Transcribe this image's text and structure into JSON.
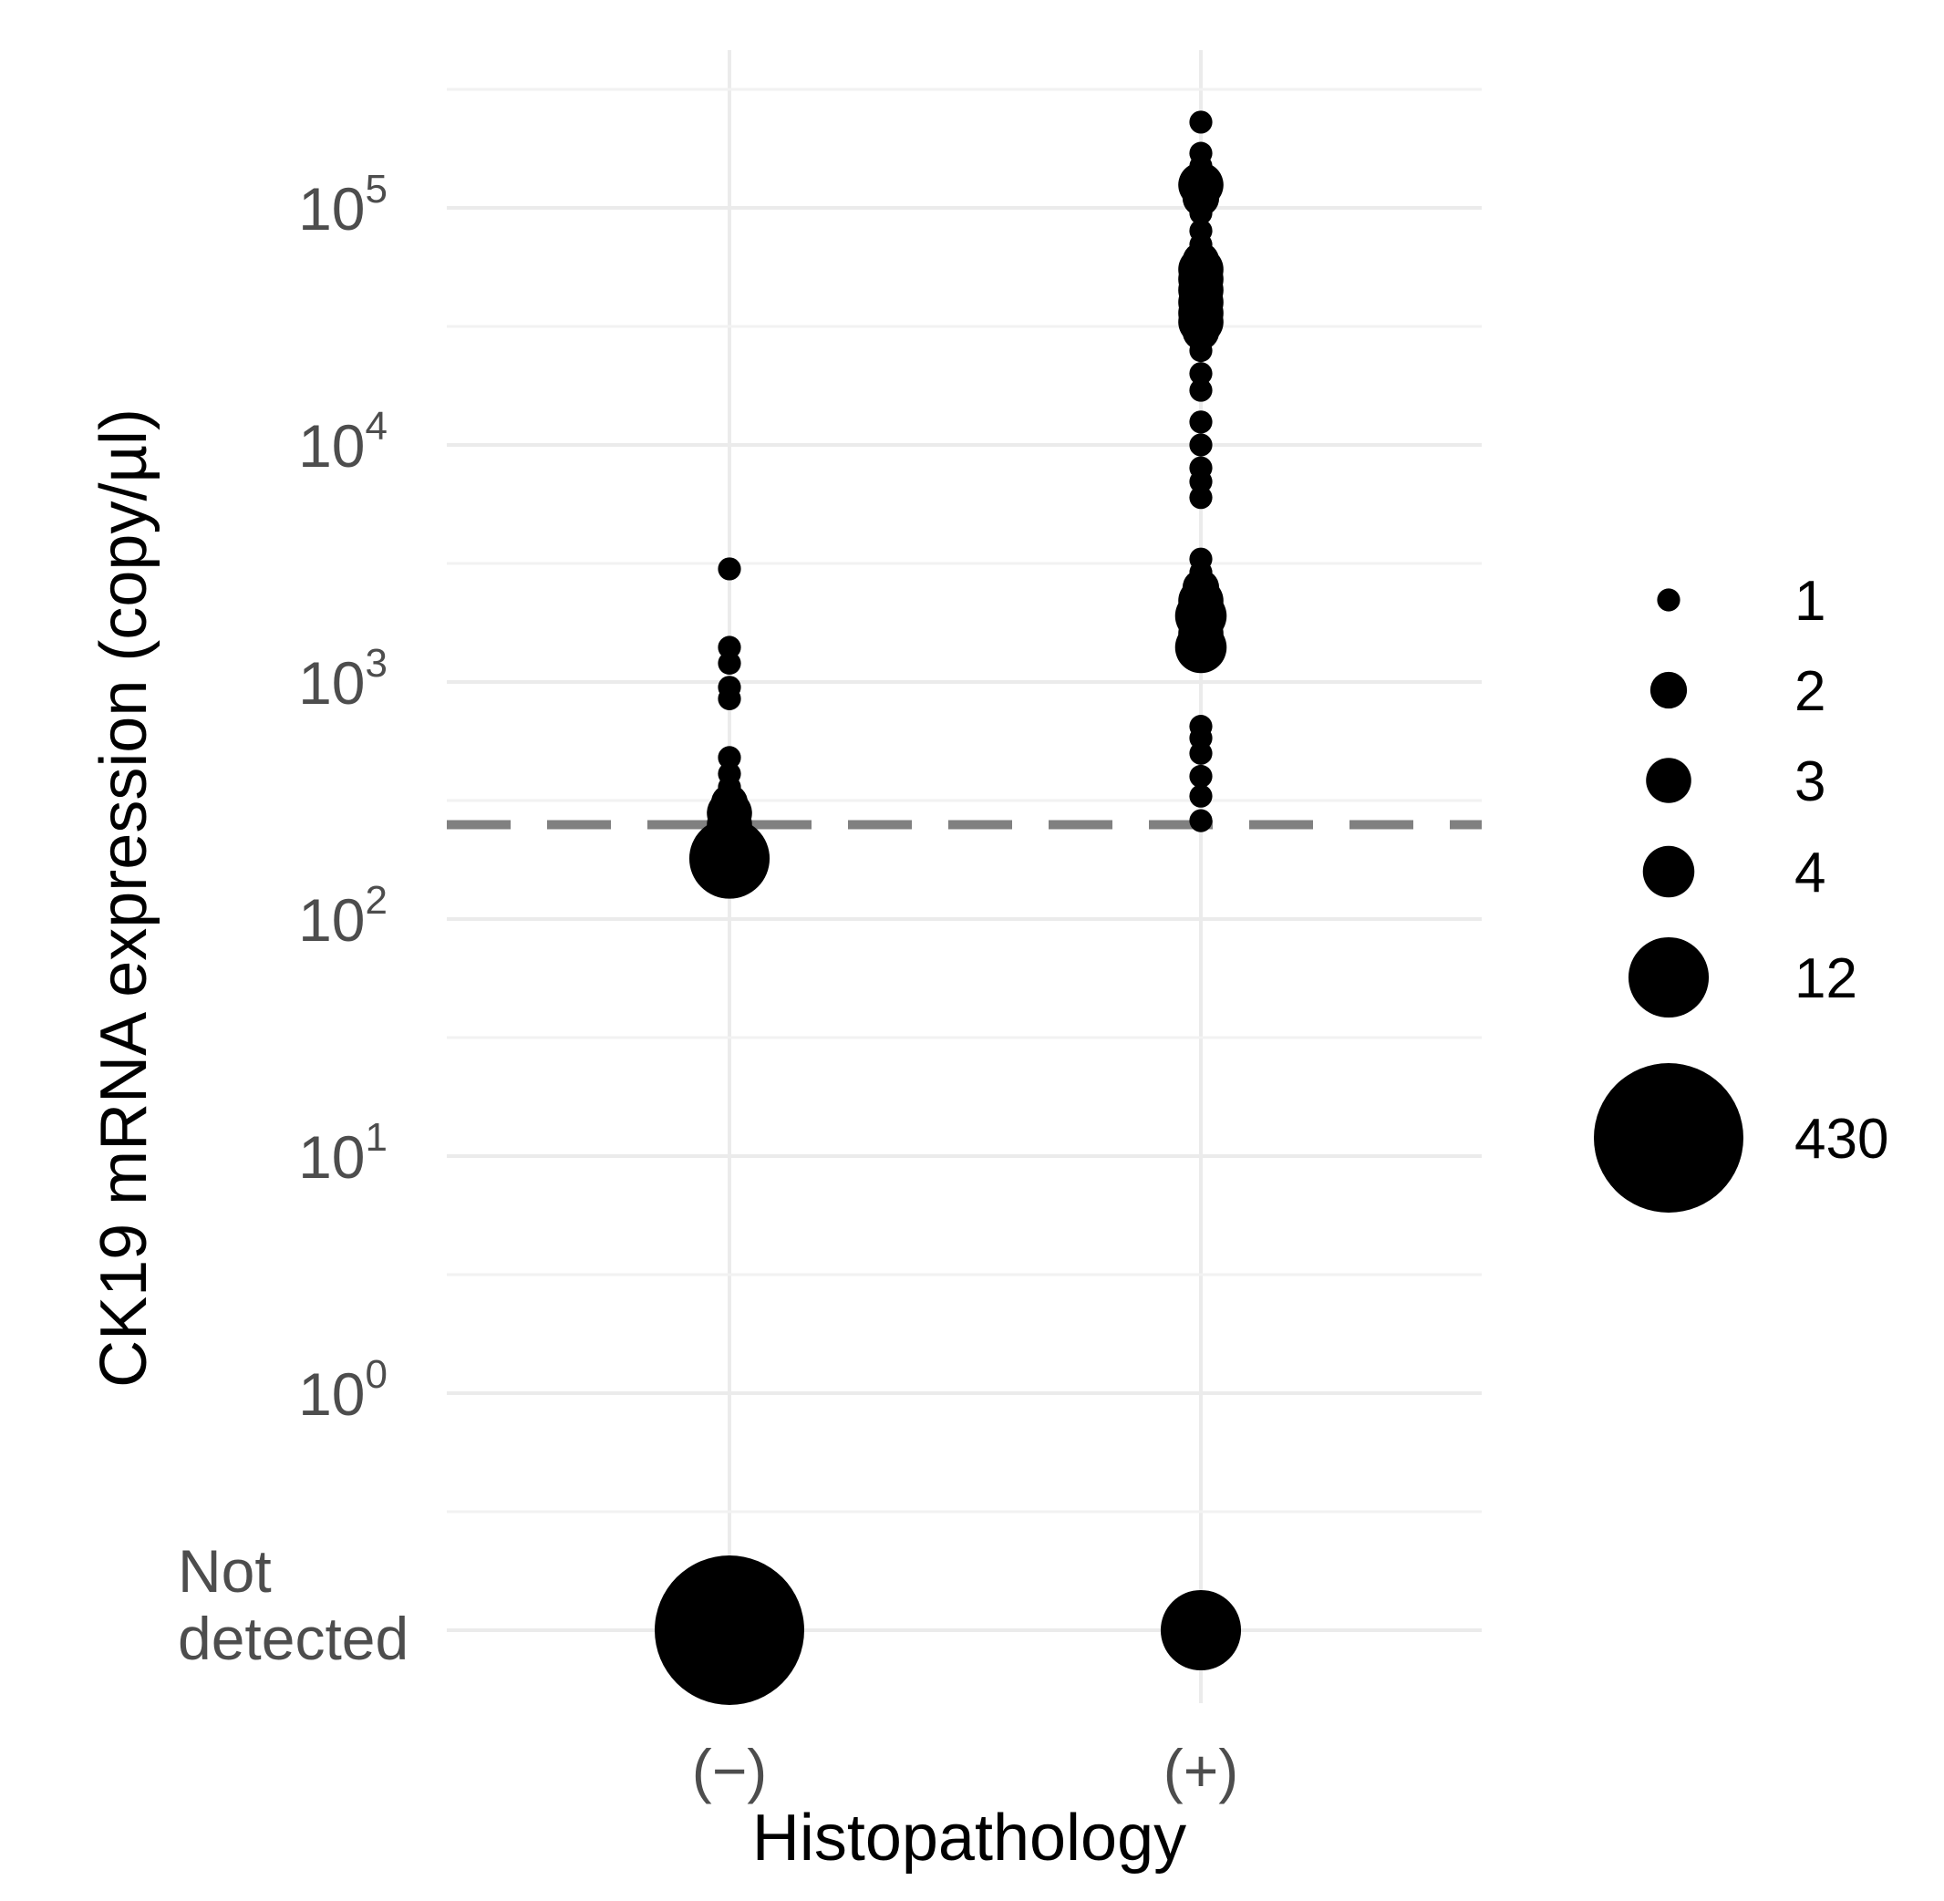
{
  "chart_data": {
    "type": "scatter",
    "title": "",
    "xlabel": "Histopathology",
    "ylabel": "CK19 mRNA expression (copy/µl)",
    "categories": [
      "(−)",
      "(+)"
    ],
    "y_scale": "log10",
    "y_ticks": [
      {
        "base": "10",
        "exp": "0",
        "value": 1
      },
      {
        "base": "10",
        "exp": "1",
        "value": 10
      },
      {
        "base": "10",
        "exp": "2",
        "value": 100
      },
      {
        "base": "10",
        "exp": "3",
        "value": 1000
      },
      {
        "base": "10",
        "exp": "4",
        "value": 10000
      },
      {
        "base": "10",
        "exp": "5",
        "value": 100000
      }
    ],
    "not_detected_label": [
      "Not",
      "detected"
    ],
    "ylim": [
      1,
      300000
    ],
    "grid": true,
    "legend_position": "right",
    "threshold": {
      "value": 250,
      "style": "dashed",
      "color": "#808080"
    },
    "size_legend": [
      {
        "label": "1",
        "count": 1
      },
      {
        "label": "2",
        "count": 2
      },
      {
        "label": "3",
        "count": 3
      },
      {
        "label": "4",
        "count": 4
      },
      {
        "label": "12",
        "count": 12
      },
      {
        "label": "430",
        "count": 430
      }
    ],
    "series": [
      {
        "category": "(−)",
        "points": [
          {
            "y": 3000,
            "count": 1
          },
          {
            "y": 1400,
            "count": 1
          },
          {
            "y": 1200,
            "count": 1
          },
          {
            "y": 950,
            "count": 1
          },
          {
            "y": 850,
            "count": 1
          },
          {
            "y": 480,
            "count": 1
          },
          {
            "y": 410,
            "count": 1
          },
          {
            "y": 360,
            "count": 1
          },
          {
            "y": 310,
            "count": 2
          },
          {
            "y": 280,
            "count": 3
          },
          {
            "y": 250,
            "count": 3
          },
          {
            "y": 220,
            "count": 4
          },
          {
            "y": 195,
            "count": 4
          },
          {
            "y": 180,
            "count": 12
          },
          {
            "y": "not_detected",
            "count": 430
          }
        ]
      },
      {
        "category": "(+)",
        "points": [
          {
            "y": 230000,
            "count": 1
          },
          {
            "y": 170000,
            "count": 1
          },
          {
            "y": 150000,
            "count": 1
          },
          {
            "y": 125000,
            "count": 3
          },
          {
            "y": 110000,
            "count": 2
          },
          {
            "y": 95000,
            "count": 1
          },
          {
            "y": 80000,
            "count": 1
          },
          {
            "y": 70000,
            "count": 1
          },
          {
            "y": 60000,
            "count": 2
          },
          {
            "y": 55000,
            "count": 3
          },
          {
            "y": 50000,
            "count": 3
          },
          {
            "y": 45000,
            "count": 3
          },
          {
            "y": 40000,
            "count": 3
          },
          {
            "y": 36000,
            "count": 3
          },
          {
            "y": 33000,
            "count": 3
          },
          {
            "y": 30000,
            "count": 2
          },
          {
            "y": 25000,
            "count": 1
          },
          {
            "y": 20000,
            "count": 1
          },
          {
            "y": 17000,
            "count": 1
          },
          {
            "y": 12500,
            "count": 1
          },
          {
            "y": 10000,
            "count": 1
          },
          {
            "y": 8000,
            "count": 1
          },
          {
            "y": 7000,
            "count": 1
          },
          {
            "y": 6000,
            "count": 1
          },
          {
            "y": 3300,
            "count": 1
          },
          {
            "y": 2900,
            "count": 1
          },
          {
            "y": 2500,
            "count": 2
          },
          {
            "y": 2200,
            "count": 3
          },
          {
            "y": 1900,
            "count": 4
          },
          {
            "y": 1600,
            "count": 3
          },
          {
            "y": 1400,
            "count": 4
          },
          {
            "y": 650,
            "count": 1
          },
          {
            "y": 580,
            "count": 1
          },
          {
            "y": 500,
            "count": 1
          },
          {
            "y": 400,
            "count": 1
          },
          {
            "y": 330,
            "count": 1
          },
          {
            "y": 260,
            "count": 1
          },
          {
            "y": "not_detected",
            "count": 12
          }
        ]
      }
    ]
  }
}
